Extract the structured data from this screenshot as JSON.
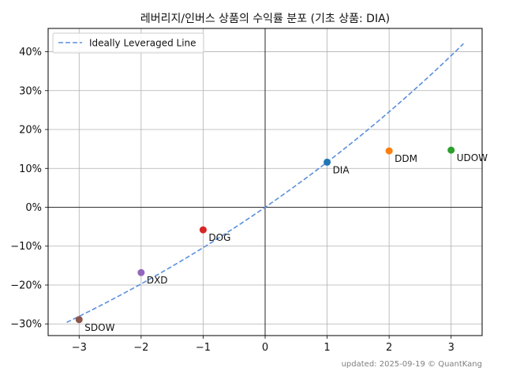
{
  "chart_data": {
    "type": "scatter",
    "title": "레버리지/인버스 상품의 수익률 분포 (기초 상품: DIA)",
    "xlabel": "",
    "ylabel": "",
    "xlim": [
      -3.5,
      3.5
    ],
    "ylim": [
      -33,
      46
    ],
    "x_ticks": [
      -3,
      -2,
      -1,
      0,
      1,
      2,
      3
    ],
    "x_tick_labels": [
      "−3",
      "−2",
      "−1",
      "0",
      "1",
      "2",
      "3"
    ],
    "y_ticks": [
      -30,
      -20,
      -10,
      0,
      10,
      20,
      30,
      40
    ],
    "y_tick_labels": [
      "−30%",
      "−20%",
      "−10%",
      "0%",
      "10%",
      "20%",
      "30%",
      "40%"
    ],
    "grid": true,
    "legend_position": "top-left",
    "points": [
      {
        "label": "SDOW",
        "x": -3,
        "y": -28.9,
        "color": "#8c564b"
      },
      {
        "label": "DXD",
        "x": -2,
        "y": -16.8,
        "color": "#9467bd"
      },
      {
        "label": "DOG",
        "x": -1,
        "y": -5.8,
        "color": "#d62728"
      },
      {
        "label": "DIA",
        "x": 1,
        "y": 11.6,
        "color": "#1f77b4"
      },
      {
        "label": "DDM",
        "x": 2,
        "y": 14.5,
        "color": "#ff7f0e"
      },
      {
        "label": "UDOW",
        "x": 3,
        "y": 14.7,
        "color": "#2ca02c"
      }
    ],
    "line": {
      "name": "Ideally Leveraged Line",
      "style": "dashed",
      "color": "#5b8fdc",
      "base_return": 11.6,
      "x_range": [
        -3.2,
        3.2
      ]
    }
  },
  "footer": "updated: 2025-09-19 © QuantKang"
}
